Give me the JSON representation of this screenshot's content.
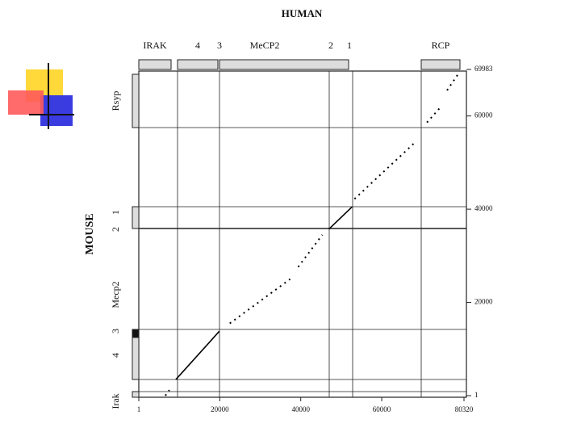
{
  "chart_data": {
    "type": "line",
    "title": "HUMAN",
    "y_label": "MOUSE",
    "human_genes": [
      "IRAK",
      "4",
      "3",
      "MeCP2",
      "2",
      "1",
      "RCP"
    ],
    "mouse_genes": [
      "Rsyp",
      "1",
      "2",
      "Mecp2",
      "3",
      "4",
      "Irak"
    ],
    "series": [
      {
        "color": "#000",
        "style": "dotted",
        "x": [
          6560,
          7550
        ],
        "values": [
          1,
          1200
        ]
      },
      {
        "color": "#000",
        "style": "solid",
        "x": [
          9150,
          19880
        ],
        "values": [
          3450,
          13800
        ]
      },
      {
        "color": "#000",
        "style": "dotted",
        "x": [
          22470,
          37380
        ],
        "values": [
          15500,
          25000
        ]
      },
      {
        "color": "#000",
        "style": "dotted",
        "x": [
          39360,
          45330
        ],
        "values": [
          27600,
          34500
        ]
      },
      {
        "color": "#000",
        "style": "solid",
        "x": [
          46920,
          52680
        ],
        "values": [
          35700,
          40500
        ]
      },
      {
        "color": "#000",
        "style": "dotted",
        "x": [
          53280,
          68190
        ],
        "values": [
          42200,
          54300
        ]
      },
      {
        "color": "#000",
        "style": "dotted",
        "x": [
          71170,
          74750
        ],
        "values": [
          58600,
          62100
        ]
      },
      {
        "color": "#000",
        "style": "dotted",
        "x": [
          76140,
          79120
        ],
        "values": [
          65500,
          69300
        ]
      }
    ],
    "xlim": [
      1,
      80320
    ],
    "xticks": [
      1,
      20000,
      40000,
      60000,
      80320
    ],
    "ylim": [
      1,
      69983
    ],
    "yticks": [
      1,
      20000,
      40000,
      60000,
      69983
    ]
  }
}
